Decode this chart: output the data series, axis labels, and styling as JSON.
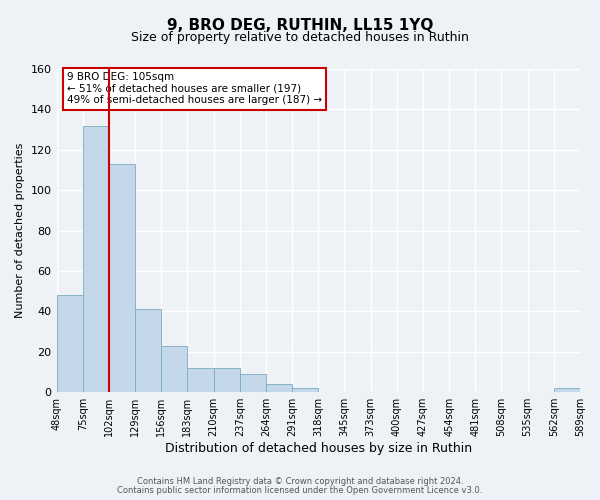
{
  "title": "9, BRO DEG, RUTHIN, LL15 1YQ",
  "subtitle": "Size of property relative to detached houses in Ruthin",
  "xlabel": "Distribution of detached houses by size in Ruthin",
  "ylabel": "Number of detached properties",
  "bar_values": [
    48,
    132,
    113,
    41,
    23,
    12,
    12,
    9,
    4,
    2,
    0,
    0,
    0,
    0,
    0,
    0,
    0,
    0,
    0,
    2
  ],
  "bin_labels": [
    "48sqm",
    "75sqm",
    "102sqm",
    "129sqm",
    "156sqm",
    "183sqm",
    "210sqm",
    "237sqm",
    "264sqm",
    "291sqm",
    "318sqm",
    "345sqm",
    "373sqm",
    "400sqm",
    "427sqm",
    "454sqm",
    "481sqm",
    "508sqm",
    "535sqm",
    "562sqm",
    "589sqm"
  ],
  "bar_color": "#c5d8ea",
  "bar_edge_color": "#7aaabf",
  "ylim": [
    0,
    160
  ],
  "yticks": [
    0,
    20,
    40,
    60,
    80,
    100,
    120,
    140,
    160
  ],
  "redline_x": 2,
  "annotation_title": "9 BRO DEG: 105sqm",
  "annotation_line1": "← 51% of detached houses are smaller (197)",
  "annotation_line2": "49% of semi-detached houses are larger (187) →",
  "annotation_box_color": "#ffffff",
  "annotation_box_edge": "#cc0000",
  "redline_color": "#cc0000",
  "footer1": "Contains HM Land Registry data © Crown copyright and database right 2024.",
  "footer2": "Contains public sector information licensed under the Open Government Licence v3.0.",
  "background_color": "#eef2f7",
  "grid_color": "#ffffff",
  "title_fontsize": 11,
  "subtitle_fontsize": 9,
  "xlabel_fontsize": 9,
  "ylabel_fontsize": 8,
  "ytick_fontsize": 8,
  "xtick_fontsize": 7
}
